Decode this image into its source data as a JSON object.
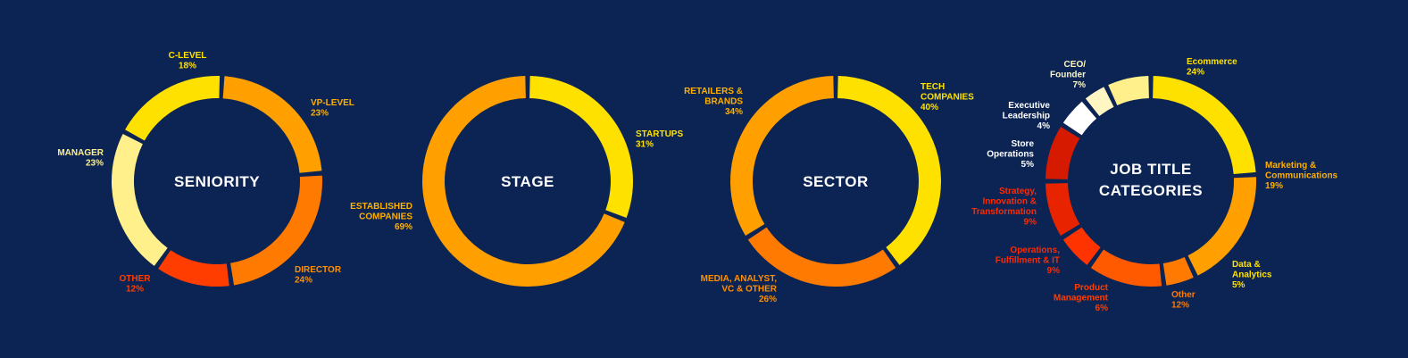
{
  "chart_data": [
    {
      "type": "donut",
      "title": "SENIORITY",
      "slices": [
        {
          "label": "C-LEVEL",
          "value": 18,
          "color": "#ffe100",
          "label_color": "#ffe100"
        },
        {
          "label": "VP-LEVEL",
          "value": 23,
          "color": "#ff9f00",
          "label_color": "#ffb000"
        },
        {
          "label": "DIRECTOR",
          "value": 24,
          "color": "#ff7a00",
          "label_color": "#ff9000"
        },
        {
          "label": "OTHER",
          "value": 12,
          "color": "#ff3d00",
          "label_color": "#ff3d00"
        },
        {
          "label": "MANAGER",
          "value": 23,
          "color": "#fff08c",
          "label_color": "#fff08c"
        }
      ]
    },
    {
      "type": "donut",
      "title": "STAGE",
      "slices": [
        {
          "label": "STARTUPS",
          "value": 31,
          "color": "#ffe100",
          "label_color": "#ffe100"
        },
        {
          "label": "ESTABLISHED COMPANIES",
          "value": 69,
          "color": "#ff9f00",
          "label_color": "#ffb000"
        }
      ]
    },
    {
      "type": "donut",
      "title": "SECTOR",
      "slices": [
        {
          "label": "TECH COMPANIES",
          "value": 40,
          "color": "#ffe100",
          "label_color": "#ffe100"
        },
        {
          "label": "MEDIA, ANALYST, VC & OTHER",
          "value": 26,
          "color": "#ff7a00",
          "label_color": "#ff9000"
        },
        {
          "label": "RETAILERS & BRANDS",
          "value": 34,
          "color": "#ff9f00",
          "label_color": "#ffb000"
        }
      ]
    },
    {
      "type": "donut",
      "title": "JOB TITLE CATEGORIES",
      "slices": [
        {
          "label": "Ecommerce",
          "value": 24,
          "color": "#ffe100",
          "label_color": "#ffe100"
        },
        {
          "label": "Marketing & Communications",
          "value": 19,
          "color": "#ff9f00",
          "label_color": "#ffb000"
        },
        {
          "label": "Data & Analytics",
          "value": 5,
          "color": "#ff7a00",
          "label_color": "#ffe100"
        },
        {
          "label": "Other",
          "value": 12,
          "color": "#ff5a00",
          "label_color": "#ff7a00"
        },
        {
          "label": "Product Management",
          "value": 6,
          "color": "#ff3300",
          "label_color": "#ff3d00"
        },
        {
          "label": "Operations, Fulfillment & IT",
          "value": 9,
          "color": "#e82400",
          "label_color": "#ff2a00"
        },
        {
          "label": "Strategy, Innovation & Transformation",
          "value": 9,
          "color": "#d61a00",
          "label_color": "#ff2a00"
        },
        {
          "label": "Store Operations",
          "value": 5,
          "color": "#ffffff",
          "label_color": "#ffffff"
        },
        {
          "label": "Executive Leadership",
          "value": 4,
          "color": "#fff6c2",
          "label_color": "#ffffff"
        },
        {
          "label": "CEO/ Founder",
          "value": 7,
          "color": "#fff08c",
          "label_color": "#fff6c2"
        }
      ]
    }
  ]
}
